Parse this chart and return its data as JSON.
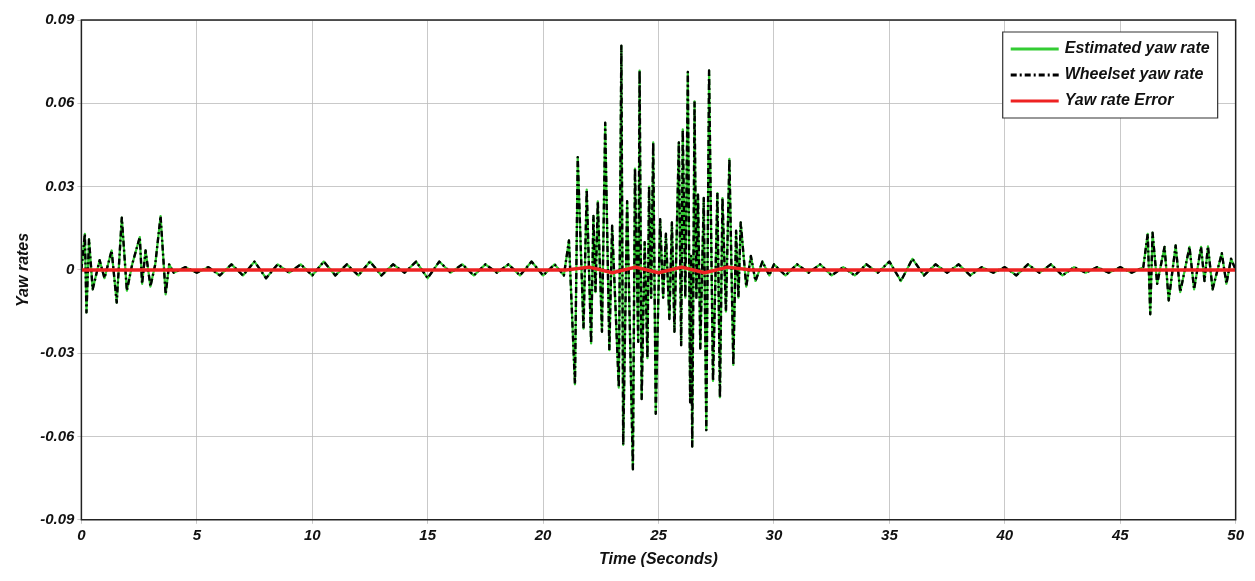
{
  "chart_data": {
    "type": "line",
    "xlabel": "Time (Seconds)",
    "ylabel": "Yaw rates",
    "xlim": [
      0,
      50
    ],
    "xticks": [
      0,
      5,
      10,
      15,
      20,
      25,
      30,
      35,
      40,
      45,
      50
    ],
    "ylim": [
      -0.09,
      0.09
    ],
    "yticks": [
      -0.09,
      -0.06,
      -0.03,
      0,
      0.03,
      0.06,
      0.09
    ],
    "grid": true,
    "legend": "top right",
    "marker": "none",
    "x": [
      0,
      0.15,
      0.22,
      0.33,
      0.49,
      0.79,
      1.0,
      1.31,
      1.53,
      1.75,
      1.97,
      2.2,
      2.53,
      2.63,
      2.78,
      2.99,
      3.2,
      3.43,
      3.65,
      3.8,
      4.0,
      4.5,
      5.0,
      5.5,
      6.0,
      6.5,
      7.0,
      7.5,
      8.0,
      8.5,
      9.0,
      9.5,
      10.0,
      10.5,
      11.0,
      11.5,
      12.0,
      12.5,
      13.0,
      13.5,
      14.0,
      14.5,
      15.0,
      15.5,
      16.0,
      16.5,
      17.0,
      17.5,
      18.0,
      18.5,
      19.0,
      19.5,
      20.0,
      20.5,
      20.9,
      21.12,
      21.38,
      21.5,
      21.75,
      21.89,
      22.08,
      22.18,
      22.27,
      22.37,
      22.55,
      22.69,
      22.87,
      22.99,
      23.28,
      23.39,
      23.47,
      23.64,
      23.89,
      23.98,
      24.12,
      24.18,
      24.27,
      24.4,
      24.52,
      24.59,
      24.68,
      24.77,
      24.88,
      25.07,
      25.2,
      25.32,
      25.47,
      25.58,
      25.69,
      25.88,
      25.98,
      26.05,
      26.16,
      26.27,
      26.37,
      26.41,
      26.46,
      26.56,
      26.64,
      26.71,
      26.81,
      26.96,
      27.07,
      27.19,
      27.36,
      27.55,
      27.66,
      27.77,
      27.92,
      28.07,
      28.24,
      28.36,
      28.46,
      28.56,
      28.8,
      29.0,
      29.2,
      29.5,
      29.8,
      30.0,
      30.5,
      31.0,
      31.5,
      32.0,
      32.5,
      33.0,
      33.5,
      34.0,
      34.5,
      35.0,
      35.5,
      36.0,
      36.5,
      37.0,
      37.5,
      38.0,
      38.5,
      39.0,
      39.5,
      40.0,
      40.5,
      41.0,
      41.5,
      42.0,
      42.5,
      43.0,
      43.5,
      44.0,
      44.5,
      45.0,
      45.5,
      46.0,
      46.19,
      46.3,
      46.4,
      46.6,
      46.92,
      47.1,
      47.4,
      47.6,
      48.0,
      48.2,
      48.5,
      48.65,
      48.8,
      49.0,
      49.4,
      49.6,
      49.8,
      50
    ],
    "series": [
      {
        "name": "Estimated yaw rate",
        "color": "#33cc33",
        "line_style": "solid",
        "values": [
          0,
          0.013,
          -0.0153,
          0.011,
          -0.007,
          0.0035,
          -0.003,
          0.007,
          -0.0118,
          0.0188,
          -0.0075,
          0.002,
          0.0118,
          -0.005,
          0.007,
          -0.006,
          0.002,
          0.0194,
          -0.0088,
          0.002,
          -0.001,
          0.001,
          -0.001,
          0.001,
          -0.002,
          0.002,
          -0.002,
          0.003,
          -0.003,
          0.002,
          -0.001,
          0.002,
          -0.002,
          0.003,
          -0.002,
          0.002,
          -0.002,
          0.003,
          -0.002,
          0.002,
          -0.001,
          0.003,
          -0.003,
          0.003,
          -0.001,
          0.002,
          -0.002,
          0.002,
          -0.001,
          0.002,
          -0.002,
          0.003,
          -0.002,
          0.002,
          -0.002,
          0.0106,
          -0.0412,
          0.0406,
          -0.0212,
          0.0289,
          -0.0265,
          0.0194,
          -0.008,
          0.0247,
          -0.0223,
          0.053,
          -0.0289,
          0.0159,
          -0.0424,
          0.0807,
          -0.063,
          0.0247,
          -0.0718,
          0.0365,
          -0.0259,
          0.0718,
          -0.0465,
          0.01,
          -0.0318,
          0.03,
          -0.01,
          0.0459,
          -0.0518,
          0.0183,
          -0.01,
          0.013,
          -0.0177,
          0.0171,
          -0.0223,
          0.0459,
          -0.0271,
          0.0506,
          -0.01,
          0.0713,
          -0.0477,
          0.005,
          -0.0636,
          0.0607,
          -0.01,
          0.0271,
          -0.0283,
          0.0259,
          -0.0577,
          0.0718,
          -0.04,
          0.0277,
          -0.0459,
          0.0259,
          -0.015,
          0.04,
          -0.0342,
          0.0141,
          -0.01,
          0.0171,
          -0.006,
          0.005,
          -0.004,
          0.003,
          -0.002,
          0.002,
          -0.002,
          0.002,
          -0.001,
          0.002,
          -0.002,
          0.001,
          -0.002,
          0.002,
          -0.001,
          0.003,
          -0.004,
          0.004,
          -0.002,
          0.002,
          -0.001,
          0.002,
          -0.002,
          0.001,
          -0.001,
          0.001,
          -0.002,
          0.002,
          -0.001,
          0.002,
          -0.002,
          0.001,
          -0.001,
          0.001,
          -0.001,
          0.001,
          -0.001,
          0.001,
          0.013,
          -0.016,
          0.0134,
          -0.005,
          0.0083,
          -0.011,
          0.0088,
          -0.008,
          0.0083,
          -0.007,
          0.0083,
          -0.004,
          0.0085,
          -0.007,
          0.006,
          -0.005,
          0.004,
          0
        ]
      },
      {
        "name": "Wheelset yaw rate",
        "color": "#000000",
        "line_style": "dashed",
        "values": [
          0,
          0.013,
          -0.0153,
          0.011,
          -0.007,
          0.0035,
          -0.003,
          0.007,
          -0.0118,
          0.0188,
          -0.0075,
          0.002,
          0.0118,
          -0.005,
          0.007,
          -0.006,
          0.002,
          0.0194,
          -0.0088,
          0.002,
          -0.001,
          0.001,
          -0.001,
          0.001,
          -0.002,
          0.002,
          -0.002,
          0.003,
          -0.003,
          0.002,
          -0.001,
          0.002,
          -0.002,
          0.003,
          -0.002,
          0.002,
          -0.002,
          0.003,
          -0.002,
          0.002,
          -0.001,
          0.003,
          -0.003,
          0.003,
          -0.001,
          0.002,
          -0.002,
          0.002,
          -0.001,
          0.002,
          -0.002,
          0.003,
          -0.002,
          0.002,
          -0.002,
          0.0106,
          -0.0412,
          0.0406,
          -0.0212,
          0.0289,
          -0.0265,
          0.0194,
          -0.008,
          0.0247,
          -0.0223,
          0.053,
          -0.0289,
          0.0159,
          -0.0424,
          0.0807,
          -0.063,
          0.0247,
          -0.0718,
          0.0365,
          -0.0259,
          0.0718,
          -0.0465,
          0.01,
          -0.0318,
          0.03,
          -0.01,
          0.0459,
          -0.0518,
          0.0183,
          -0.01,
          0.013,
          -0.0177,
          0.0171,
          -0.0223,
          0.0459,
          -0.0271,
          0.0506,
          -0.01,
          0.0713,
          -0.0477,
          0.005,
          -0.0636,
          0.0607,
          -0.01,
          0.0271,
          -0.0283,
          0.0259,
          -0.0577,
          0.0718,
          -0.04,
          0.0277,
          -0.0459,
          0.0259,
          -0.015,
          0.04,
          -0.0342,
          0.0141,
          -0.01,
          0.0171,
          -0.006,
          0.005,
          -0.004,
          0.003,
          -0.002,
          0.002,
          -0.002,
          0.002,
          -0.001,
          0.002,
          -0.002,
          0.001,
          -0.002,
          0.002,
          -0.001,
          0.003,
          -0.004,
          0.004,
          -0.002,
          0.002,
          -0.001,
          0.002,
          -0.002,
          0.001,
          -0.001,
          0.001,
          -0.002,
          0.002,
          -0.001,
          0.002,
          -0.002,
          0.001,
          -0.001,
          0.001,
          -0.001,
          0.001,
          -0.001,
          0.001,
          0.013,
          -0.016,
          0.0134,
          -0.005,
          0.0083,
          -0.011,
          0.0088,
          -0.008,
          0.0083,
          -0.007,
          0.0083,
          -0.004,
          0.0085,
          -0.007,
          0.006,
          -0.005,
          0.004,
          0
        ]
      },
      {
        "name": "Yaw rate Error",
        "color": "#ee2222",
        "line_style": "solid",
        "x": [
          0,
          21,
          22,
          23,
          24,
          25,
          26,
          27,
          28,
          29,
          50
        ],
        "values": [
          0,
          0,
          0.001,
          -0.001,
          0.001,
          -0.001,
          0.001,
          -0.001,
          0.001,
          0,
          0
        ]
      }
    ]
  }
}
